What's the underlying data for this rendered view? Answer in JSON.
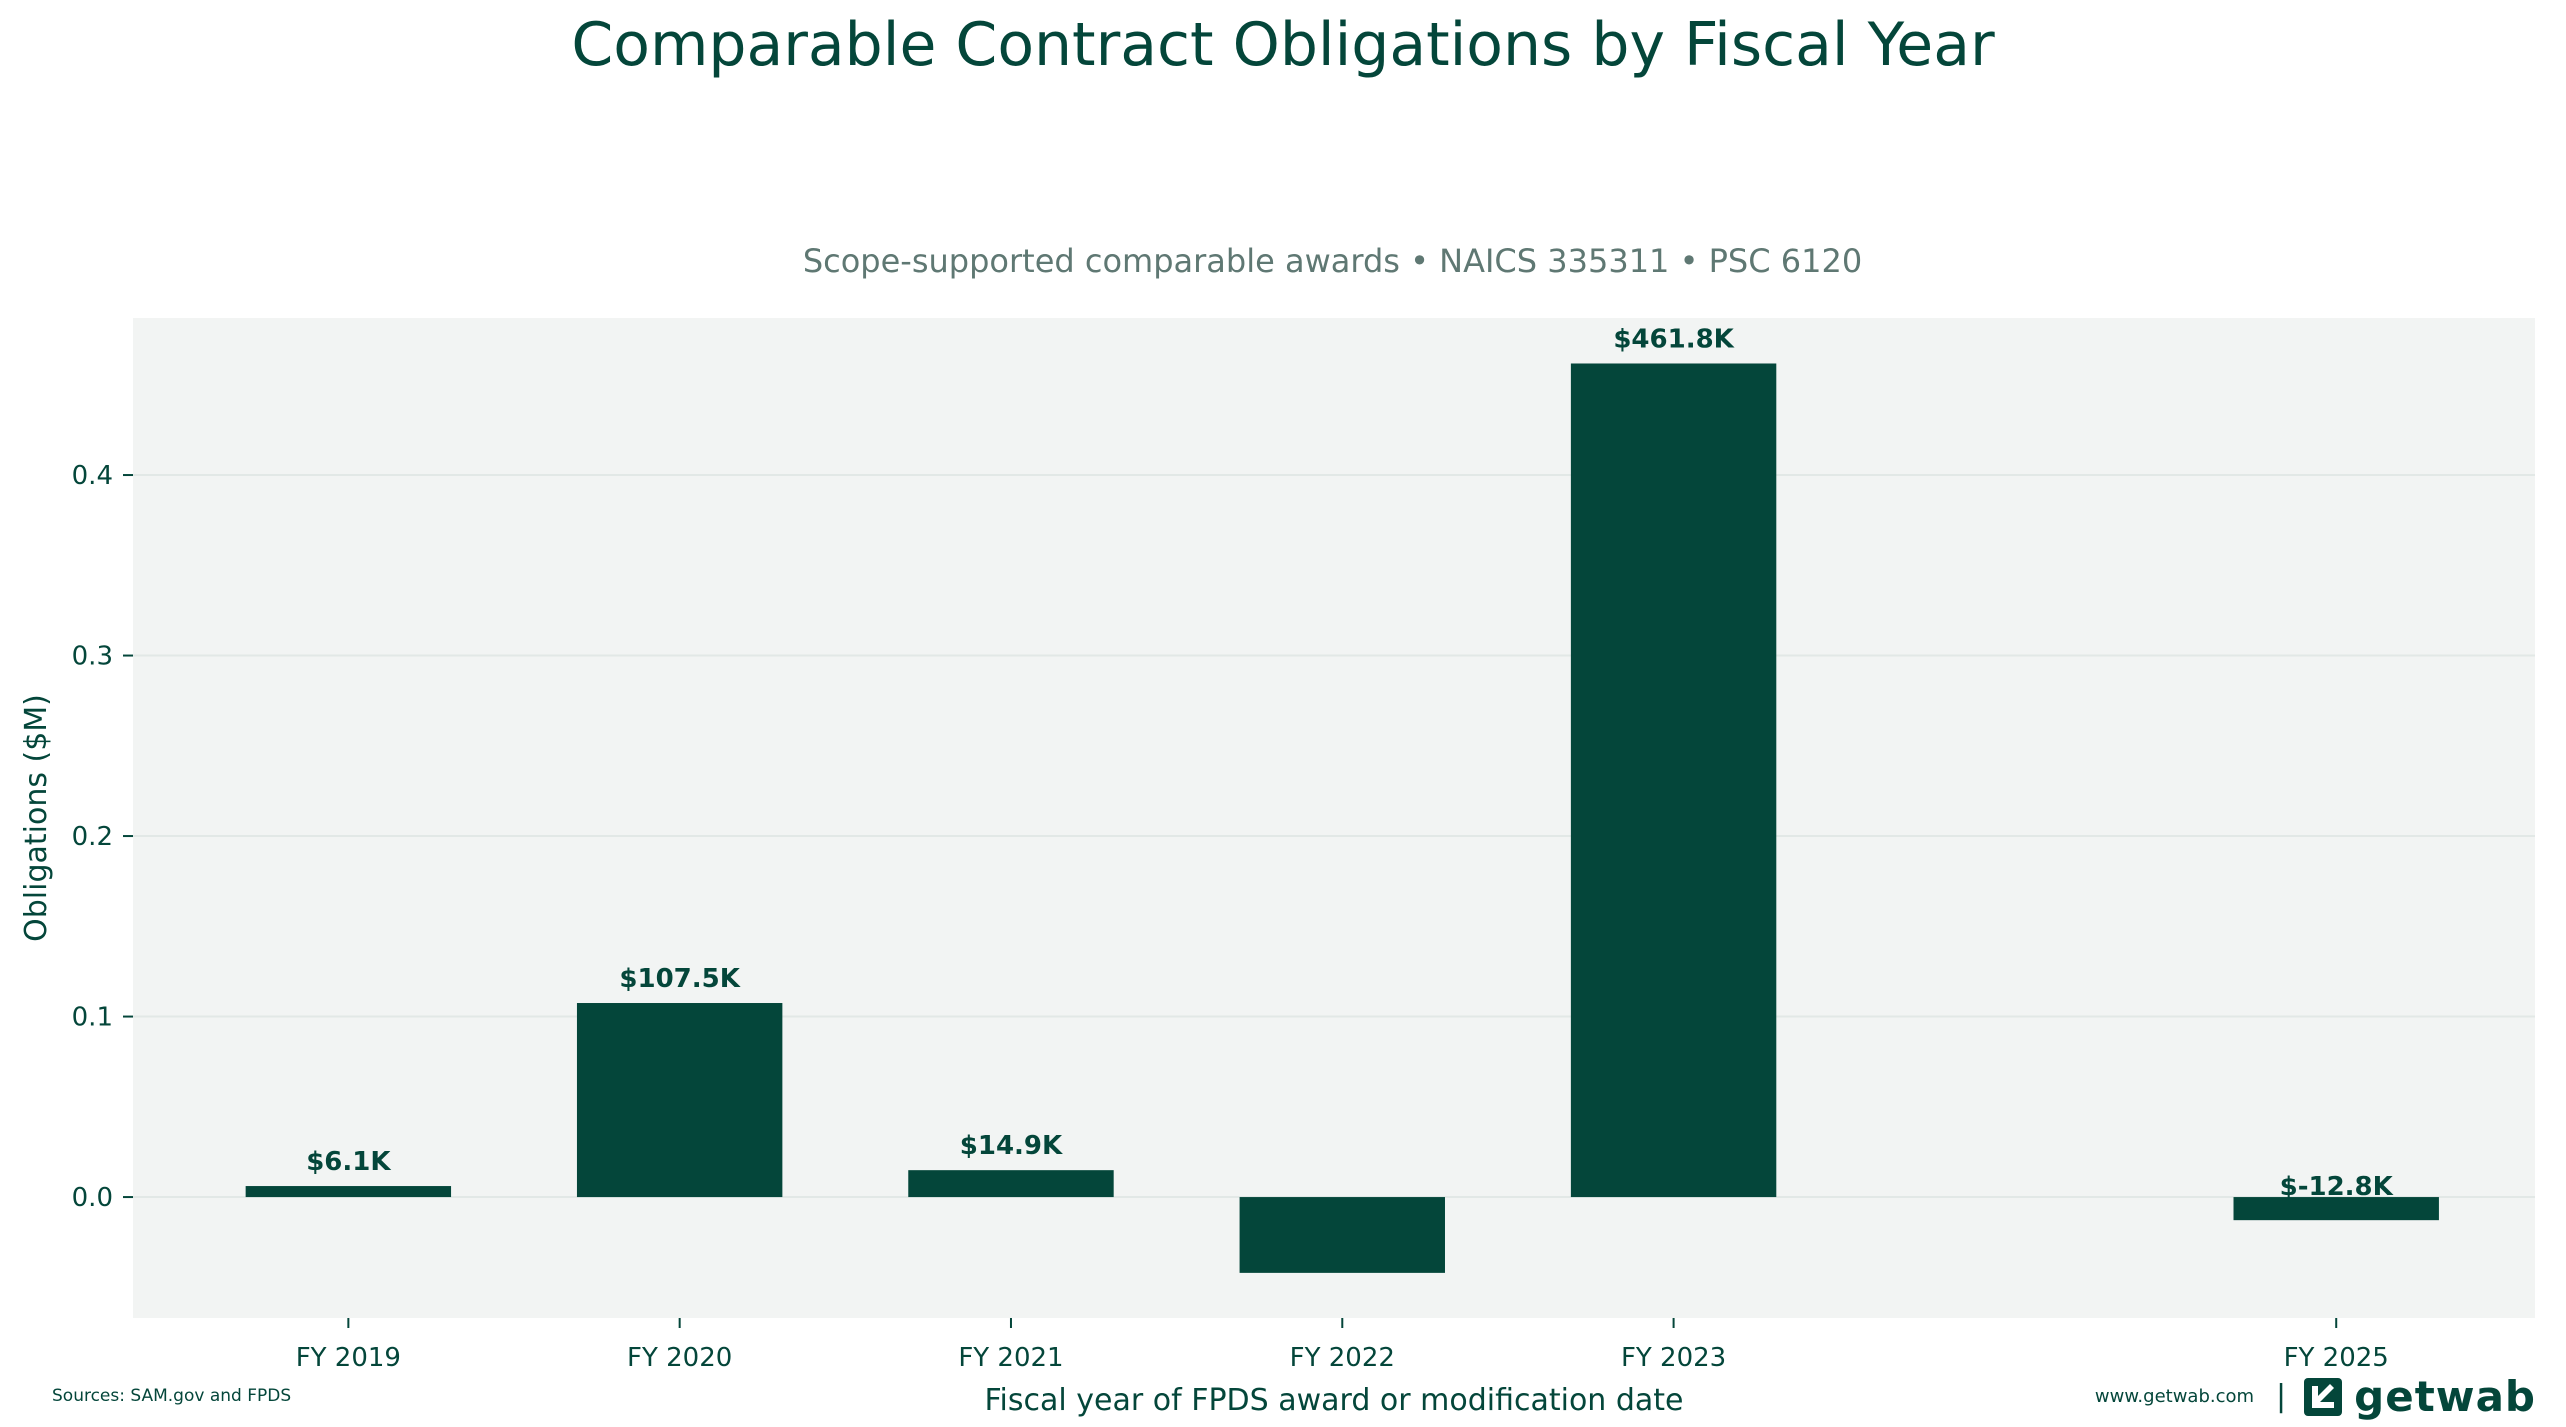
{
  "chart_data": {
    "type": "bar",
    "title": "Comparable Contract Obligations by Fiscal Year",
    "subtitle": "Scope-supported comparable awards • NAICS 335311 • PSC 6120",
    "xlabel": "Fiscal year of FPDS award or modification date",
    "ylabel": "Obligations ($M)",
    "x": [
      2019,
      2020,
      2021,
      2022,
      2023,
      2025
    ],
    "categories": [
      "FY 2019",
      "FY 2020",
      "FY 2021",
      "FY 2022",
      "FY 2023",
      "FY 2025"
    ],
    "values": [
      0.0061,
      0.1075,
      0.0149,
      -0.042,
      0.4618,
      -0.0128
    ],
    "data_labels": [
      "$6.1K",
      "$107.5K",
      "$14.9K",
      "",
      "$461.8K",
      "$-12.8K"
    ],
    "yticks": [
      "0.0",
      "0.1",
      "0.2",
      "0.3",
      "0.4"
    ],
    "ylim": [
      -0.067,
      0.487
    ],
    "xlim": [
      2018.35,
      2025.6
    ],
    "grid": true,
    "colors": {
      "bar": "#04463a",
      "plot_bg": "#f2f4f3",
      "grid": "#e2e8e6",
      "text": "#04463a"
    }
  },
  "footer": {
    "source": "Sources: SAM.gov and FPDS",
    "site": "www.getwab.com",
    "separator": "|",
    "logo_text": "getwab"
  }
}
